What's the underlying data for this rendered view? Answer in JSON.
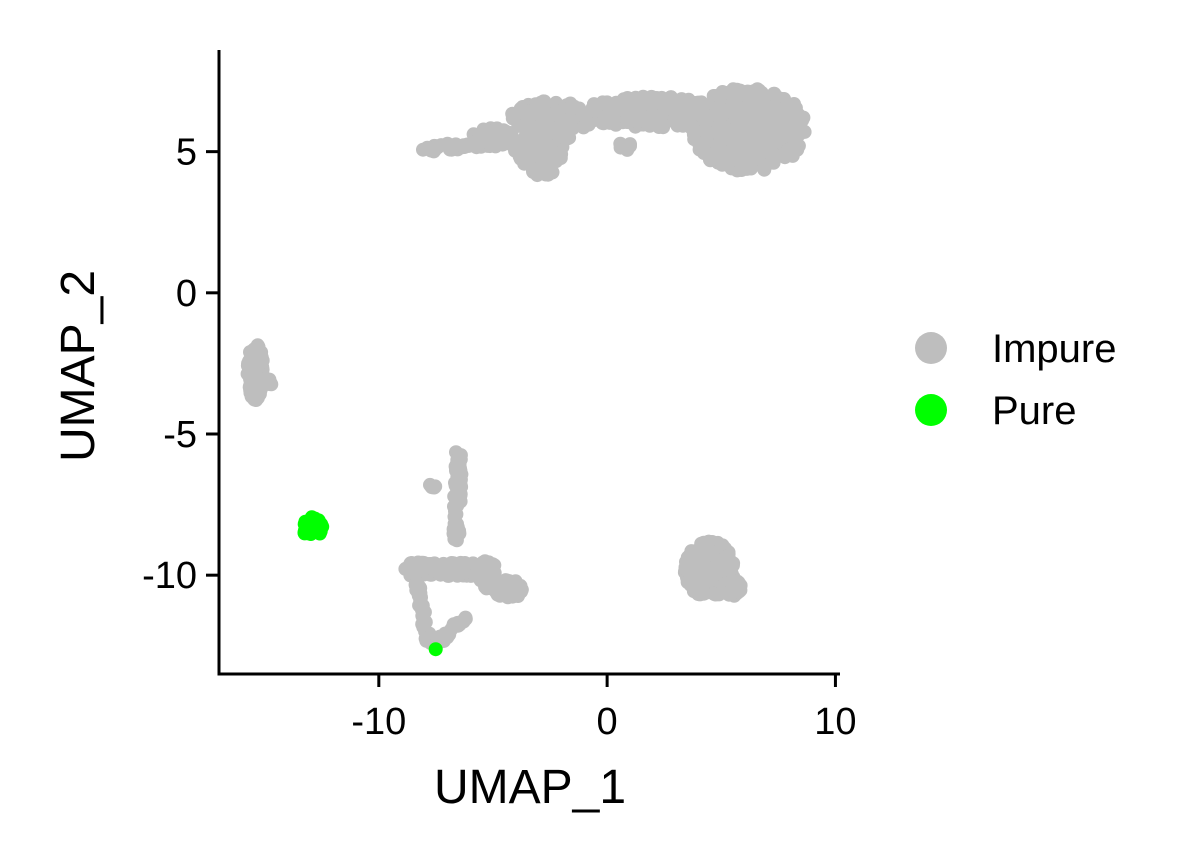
{
  "chart_data": {
    "type": "scatter",
    "title": "",
    "xlabel": "UMAP_1",
    "ylabel": "UMAP_2",
    "xlim": [
      -17,
      10.2
    ],
    "ylim": [
      -13.5,
      8.6
    ],
    "xticks": [
      -10,
      0,
      10
    ],
    "xtick_labels": [
      "-10",
      "0",
      "10"
    ],
    "yticks": [
      5,
      0,
      -5,
      -10
    ],
    "ytick_labels": [
      "5",
      "0",
      "-5",
      "-10"
    ],
    "grid": false,
    "legend_position": "right",
    "series": [
      {
        "name": "Impure",
        "color": "#BEBEBE",
        "clusters": [
          {
            "shape": "ellipse",
            "cx": 6.2,
            "cy": 5.8,
            "rx": 2.5,
            "ry": 1.5,
            "n": 420
          },
          {
            "shape": "ellipse",
            "cx": 2.0,
            "cy": 6.4,
            "rx": 3.2,
            "ry": 0.55,
            "n": 260
          },
          {
            "shape": "ellipse",
            "cx": -2.5,
            "cy": 6.1,
            "rx": 1.8,
            "ry": 0.7,
            "n": 150
          },
          {
            "shape": "ellipse",
            "cx": -3.0,
            "cy": 5.0,
            "rx": 1.1,
            "ry": 0.55,
            "n": 70
          },
          {
            "shape": "ellipse",
            "cx": -2.8,
            "cy": 4.4,
            "rx": 0.5,
            "ry": 0.3,
            "n": 20
          },
          {
            "shape": "ellipse",
            "cx": -5.0,
            "cy": 5.5,
            "rx": 0.9,
            "ry": 0.35,
            "n": 50
          },
          {
            "shape": "line",
            "x0": -8.0,
            "y0": 5.1,
            "x1": -5.0,
            "y1": 5.3,
            "n": 50,
            "spread": 0.12
          },
          {
            "shape": "ellipse",
            "cx": 0.8,
            "cy": 5.2,
            "rx": 0.3,
            "ry": 0.15,
            "n": 6
          },
          {
            "shape": "ellipse",
            "cx": -15.4,
            "cy": -2.8,
            "rx": 0.35,
            "ry": 1.0,
            "n": 110
          },
          {
            "shape": "ellipse",
            "cx": -15.0,
            "cy": -3.2,
            "rx": 0.3,
            "ry": 0.2,
            "n": 10
          },
          {
            "shape": "ellipse",
            "cx": 4.5,
            "cy": -9.8,
            "rx": 1.1,
            "ry": 1.0,
            "n": 280
          },
          {
            "shape": "ellipse",
            "cx": 5.5,
            "cy": -10.5,
            "rx": 0.5,
            "ry": 0.3,
            "n": 30
          },
          {
            "shape": "line",
            "x0": -6.5,
            "y0": -5.5,
            "x1": -6.6,
            "y1": -8.8,
            "n": 45,
            "spread": 0.15
          },
          {
            "shape": "ellipse",
            "cx": -7.7,
            "cy": -6.8,
            "rx": 0.2,
            "ry": 0.2,
            "n": 4
          },
          {
            "shape": "line",
            "x0": -8.8,
            "y0": -9.8,
            "x1": -5.0,
            "y1": -9.8,
            "n": 120,
            "spread": 0.25
          },
          {
            "shape": "ellipse",
            "cx": -4.3,
            "cy": -10.5,
            "rx": 0.6,
            "ry": 0.35,
            "n": 50
          },
          {
            "shape": "ellipse",
            "cx": -5.3,
            "cy": -10.0,
            "rx": 0.4,
            "ry": 0.5,
            "n": 30
          },
          {
            "shape": "line",
            "x0": -8.4,
            "y0": -10.2,
            "x1": -7.8,
            "y1": -12.4,
            "n": 40,
            "spread": 0.12
          },
          {
            "shape": "line",
            "x0": -7.6,
            "y0": -12.5,
            "x1": -6.0,
            "y1": -11.4,
            "n": 25,
            "spread": 0.1
          }
        ]
      },
      {
        "name": "Pure",
        "color": "#00FF00",
        "clusters": [
          {
            "shape": "ellipse",
            "cx": -12.9,
            "cy": -8.3,
            "rx": 0.45,
            "ry": 0.35,
            "n": 40
          },
          {
            "shape": "ellipse",
            "cx": -7.5,
            "cy": -12.6,
            "rx": 0.05,
            "ry": 0.05,
            "n": 1
          }
        ]
      }
    ]
  }
}
